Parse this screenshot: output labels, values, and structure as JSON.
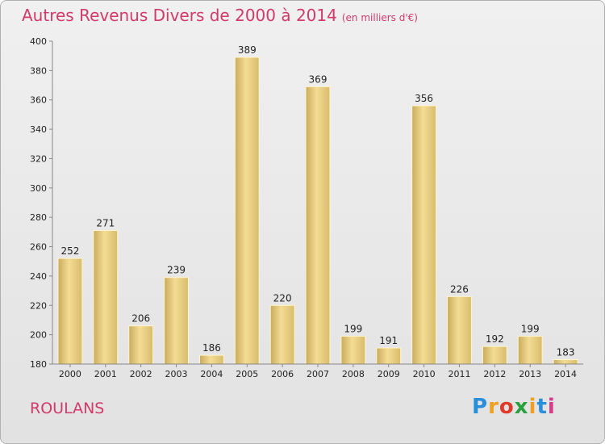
{
  "chart_data": {
    "type": "bar",
    "title": "Autres Revenus Divers de 2000 à 2014",
    "subtitle": "(en milliers d'€)",
    "categories": [
      "2000",
      "2001",
      "2002",
      "2003",
      "2004",
      "2005",
      "2006",
      "2007",
      "2008",
      "2009",
      "2010",
      "2011",
      "2012",
      "2013",
      "2014"
    ],
    "values": [
      252,
      271,
      206,
      239,
      186,
      389,
      220,
      369,
      199,
      191,
      356,
      226,
      192,
      199,
      183
    ],
    "ylim": [
      180,
      400
    ],
    "yticks": [
      180,
      200,
      220,
      240,
      260,
      280,
      300,
      320,
      340,
      360,
      380,
      400
    ],
    "grid": false,
    "bar_color": "#e8cf85"
  },
  "location": "ROULANS",
  "logo": {
    "letters": [
      "P",
      "r",
      "o",
      "x",
      "i",
      "t",
      "i"
    ],
    "colors": [
      "#2a8fd8",
      "#f0a020",
      "#e03a2a",
      "#2aa040",
      "#f0a020",
      "#2a8fd8",
      "#d83a8a"
    ]
  }
}
